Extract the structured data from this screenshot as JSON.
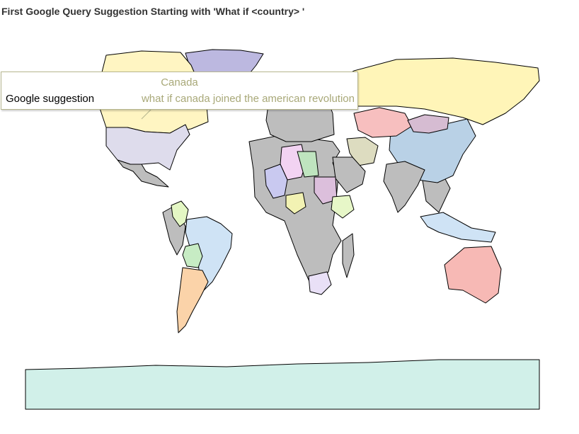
{
  "title": "First Google Query Suggestion Starting with 'What if <country> '",
  "tooltip": {
    "country": "Canada",
    "label": "Google suggestion",
    "value": "what if canada joined the american revolution"
  },
  "colors": {
    "no_data": "#bdbdbd",
    "ocean": "#ffffff",
    "border": "#000000",
    "tooltip_border": "#b5b58e"
  },
  "regions": [
    {
      "name": "Greenland",
      "color": "#bcb8e0"
    },
    {
      "name": "Canada",
      "color": "#fff5c2"
    },
    {
      "name": "United States",
      "color": "#dedcec"
    },
    {
      "name": "Mexico",
      "color": "#bdbdbd"
    },
    {
      "name": "Colombia",
      "color": "#e4f7c4"
    },
    {
      "name": "Brazil",
      "color": "#cfe3f5"
    },
    {
      "name": "Bolivia",
      "color": "#c7ecc4"
    },
    {
      "name": "Argentina",
      "color": "#fbd3a9"
    },
    {
      "name": "Russia",
      "color": "#fff5b8"
    },
    {
      "name": "China",
      "color": "#b9d1e6"
    },
    {
      "name": "Kazakhstan",
      "color": "#f7bfbf"
    },
    {
      "name": "Mongolia",
      "color": "#d6bcd2"
    },
    {
      "name": "India",
      "color": "#bdbdbd"
    },
    {
      "name": "Iran",
      "color": "#dddcc0"
    },
    {
      "name": "Saudi Arabia",
      "color": "#bdbdbd"
    },
    {
      "name": "Algeria",
      "color": "#f2d3f2"
    },
    {
      "name": "Libya",
      "color": "#bfe4bf"
    },
    {
      "name": "Sudan",
      "color": "#dcbfdc"
    },
    {
      "name": "Mali",
      "color": "#c9c9f0"
    },
    {
      "name": "Nigeria",
      "color": "#f2f2b3"
    },
    {
      "name": "Ethiopia",
      "color": "#e7f7c8"
    },
    {
      "name": "South Africa",
      "color": "#e9e0f7"
    },
    {
      "name": "Madagascar",
      "color": "#bdbdbd"
    },
    {
      "name": "Australia",
      "color": "#f7b9b5"
    },
    {
      "name": "Indonesia",
      "color": "#cfe3f5"
    },
    {
      "name": "Antarctica",
      "color": "#d1f0e9"
    }
  ]
}
